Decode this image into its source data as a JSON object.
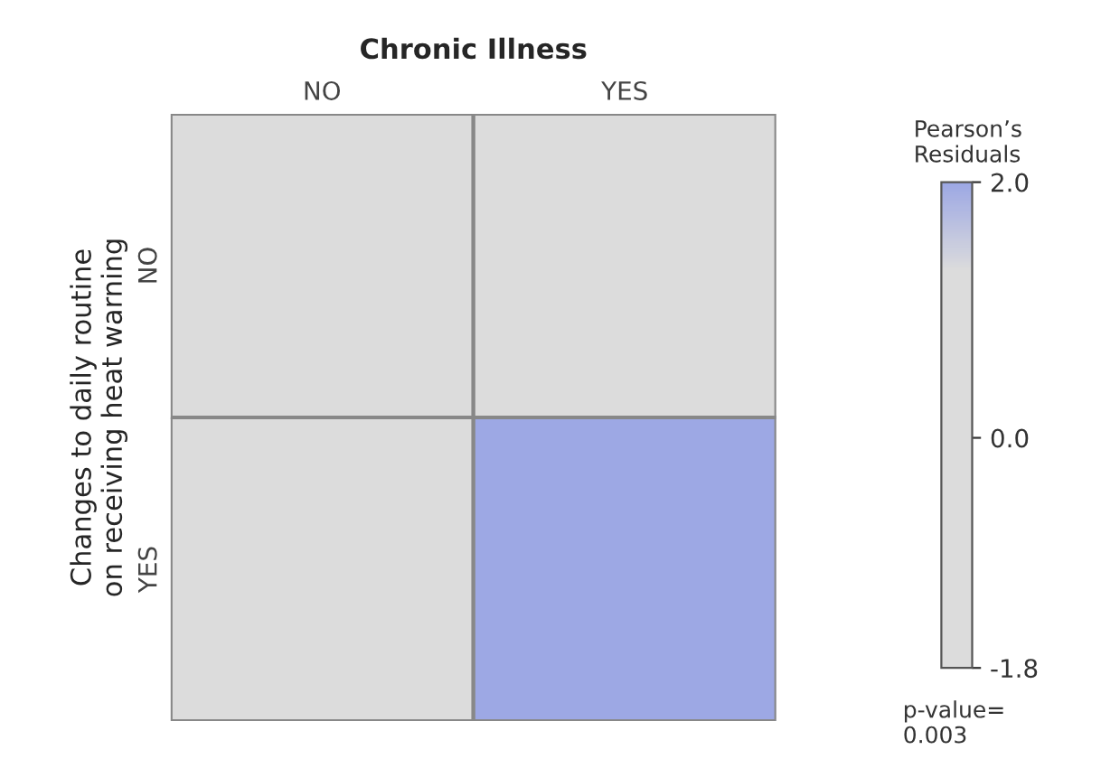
{
  "chart_data": {
    "type": "heatmap",
    "title": "Chronic Illness",
    "ylabel": "Changes to daily routine\non receiving heat warning",
    "clabel": "Pearson’s\nResiduals",
    "categories": [
      "NO",
      "YES"
    ],
    "y_categories": [
      "NO",
      "YES"
    ],
    "cells": [
      [
        null,
        null
      ],
      [
        null,
        2.0
      ]
    ],
    "clim": [
      -1.8,
      2.0
    ],
    "cticks": [
      {
        "value": 2.0,
        "label": "2.0"
      },
      {
        "value": 0.0,
        "label": "0.0"
      },
      {
        "value": -1.8,
        "label": "-1.8"
      }
    ],
    "annotations": [
      "p-value=\n0.003"
    ]
  }
}
